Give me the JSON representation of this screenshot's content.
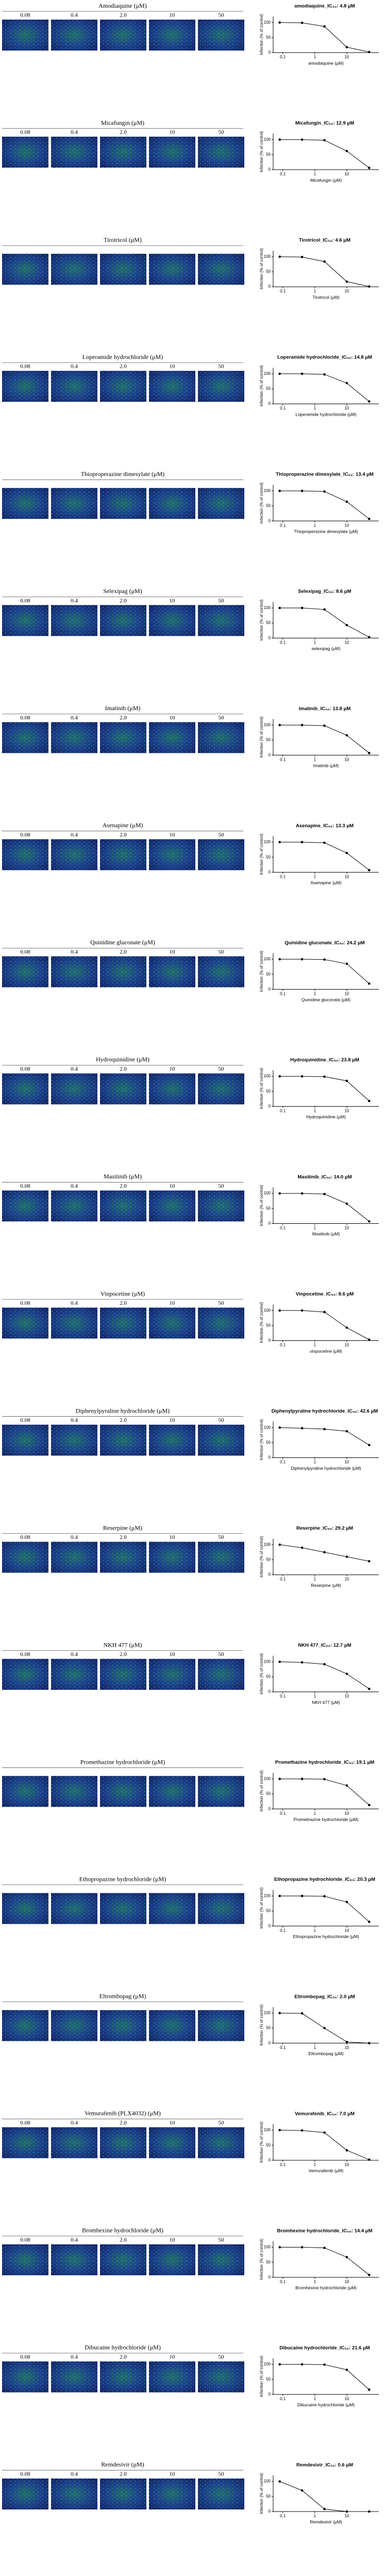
{
  "chart_data": [
    {
      "type": "line",
      "panel_title": "Amodiaquine (μM)",
      "image_labels": [
        "0.08",
        "0.4",
        "2.0",
        "10",
        "50"
      ],
      "title": "amodiaquine_IC₅₀: 4.8 μM",
      "xlabel": "amodiaquine (μM)",
      "ylabel": "Infection (% of control)",
      "x": [
        0.08,
        0.4,
        2,
        10,
        50
      ],
      "values": [
        100,
        99,
        87,
        18,
        2
      ],
      "color": "#000000",
      "log_x": true,
      "xlim": [
        0.05,
        100
      ],
      "ylim": [
        0,
        120
      ],
      "xticks": [
        0.1,
        1,
        10
      ],
      "yticks": [
        0,
        50,
        100
      ]
    },
    {
      "type": "line",
      "panel_title": "Micafungin (μM)",
      "image_labels": [
        "0.08",
        "0.4",
        "2.0",
        "10",
        "50"
      ],
      "title": "Micafungin_IC₅₀: 12.9 μM",
      "xlabel": "Micafungin (μM)",
      "ylabel": "Infection (% of control)",
      "x": [
        0.08,
        0.4,
        2,
        10,
        50
      ],
      "values": [
        100,
        100,
        98,
        62,
        6
      ],
      "color": "#000000",
      "log_x": true,
      "xlim": [
        0.05,
        100
      ],
      "ylim": [
        0,
        120
      ],
      "xticks": [
        0.1,
        1,
        10
      ],
      "yticks": [
        0,
        50,
        100
      ]
    },
    {
      "type": "line",
      "panel_title": "Tirotricol (μM)",
      "title": "Tirotricol_IC₅₀: 4.6 μM",
      "xlabel": "Tirotricol (μM)",
      "ylabel": "Infection (% of control)",
      "x": [
        0.08,
        0.4,
        2,
        10,
        50
      ],
      "values": [
        100,
        99,
        84,
        17,
        1
      ],
      "color": "#000000",
      "log_x": true,
      "xlim": [
        0.05,
        100
      ],
      "ylim": [
        0,
        120
      ],
      "xticks": [
        0.1,
        1,
        10
      ],
      "yticks": [
        0,
        50,
        100
      ]
    },
    {
      "type": "line",
      "panel_title": "Loperamide hydrochloride (μM)",
      "image_labels": [
        "0.08",
        "0.4",
        "2.0",
        "10",
        "50"
      ],
      "title": "Loperamide hydrochloride_IC₅₀: 14.8 μM",
      "xlabel": "Loperamide hydrochloride (μM)",
      "ylabel": "Infection (% of control)",
      "x": [
        0.08,
        0.4,
        2,
        10,
        50
      ],
      "values": [
        100,
        100,
        98,
        69,
        8
      ],
      "color": "#000000",
      "log_x": true,
      "xlim": [
        0.05,
        100
      ],
      "ylim": [
        0,
        120
      ],
      "xticks": [
        0.1,
        1,
        10
      ],
      "yticks": [
        0,
        50,
        100
      ]
    },
    {
      "type": "line",
      "panel_title": "Thioproperazine dimesylate (μM)",
      "title": "Thioproperazine dimesylate_IC₅₀: 13.4 μM",
      "xlabel": "Thioproperazine dimesylate (μM)",
      "ylabel": "Infection (% of control)",
      "x": [
        0.08,
        0.4,
        2,
        10,
        50
      ],
      "values": [
        100,
        100,
        98,
        64,
        7
      ],
      "color": "#000000",
      "log_x": true,
      "xlim": [
        0.05,
        100
      ],
      "ylim": [
        0,
        120
      ],
      "xticks": [
        0.1,
        1,
        10
      ],
      "yticks": [
        0,
        50,
        100
      ]
    },
    {
      "type": "line",
      "panel_title": "Selexipag (μM)",
      "image_labels": [
        "0.08",
        "0.4",
        "2.0",
        "10",
        "50"
      ],
      "title": "Selexipag_IC₅₀: 8.6 μM",
      "xlabel": "selexipag (μM)",
      "ylabel": "Infection (% of control)",
      "x": [
        0.08,
        0.4,
        2,
        10,
        50
      ],
      "values": [
        100,
        100,
        95,
        43,
        3
      ],
      "color": "#000000",
      "log_x": true,
      "xlim": [
        0.05,
        100
      ],
      "ylim": [
        0,
        120
      ],
      "xticks": [
        0.1,
        1,
        10
      ],
      "yticks": [
        0,
        50,
        100
      ]
    },
    {
      "type": "line",
      "panel_title": "Imatinib (μM)",
      "image_labels": [
        "0.08",
        "0.4",
        "2.0",
        "10",
        "50"
      ],
      "title": "Imatinib_IC₅₀: 13.8 μM",
      "xlabel": "Imatinib (μM)",
      "ylabel": "Infection (% of control)",
      "x": [
        0.08,
        0.4,
        2,
        10,
        50
      ],
      "values": [
        100,
        100,
        98,
        66,
        7
      ],
      "color": "#000000",
      "log_x": true,
      "xlim": [
        0.05,
        100
      ],
      "ylim": [
        0,
        120
      ],
      "xticks": [
        0.1,
        1,
        10
      ],
      "yticks": [
        0,
        50,
        100
      ]
    },
    {
      "type": "line",
      "panel_title": "Asenapine (μM)",
      "image_labels": [
        "0.08",
        "0.4",
        "2.0",
        "10",
        "50"
      ],
      "title": "Asenapine_IC₅₀: 13.3 μM",
      "xlabel": "Asenapine (μM)",
      "ylabel": "Infection (% of control)",
      "x": [
        0.08,
        0.4,
        2,
        10,
        50
      ],
      "values": [
        100,
        100,
        98,
        64,
        7
      ],
      "color": "#000000",
      "log_x": true,
      "xlim": [
        0.05,
        100
      ],
      "ylim": [
        0,
        120
      ],
      "xticks": [
        0.1,
        1,
        10
      ],
      "yticks": [
        0,
        50,
        100
      ]
    },
    {
      "type": "line",
      "panel_title": "Quinidine gluconate (μM)",
      "image_labels": [
        "0.08",
        "0.4",
        "2.0",
        "10",
        "50"
      ],
      "title": "Quinidine gluconate_IC₅₀: 24.2 μM",
      "xlabel": "Quinidine gluconate (μM)",
      "ylabel": "Infection (% of control)",
      "x": [
        0.08,
        0.4,
        2,
        10,
        50
      ],
      "values": [
        100,
        100,
        99,
        85,
        19
      ],
      "color": "#000000",
      "log_x": true,
      "xlim": [
        0.05,
        100
      ],
      "ylim": [
        0,
        120
      ],
      "xticks": [
        0.1,
        1,
        10
      ],
      "yticks": [
        0,
        50,
        100
      ]
    },
    {
      "type": "line",
      "panel_title": "Hydroquinidine (μM)",
      "image_labels": [
        "0.08",
        "0.4",
        "2.0",
        "10",
        "50"
      ],
      "title": "Hydroquinidine_IC₅₀: 23.8 μM",
      "xlabel": "Hydroquinidine (μM)",
      "ylabel": "Infection (% of control)",
      "x": [
        0.08,
        0.4,
        2,
        10,
        50
      ],
      "values": [
        100,
        100,
        99,
        85,
        18
      ],
      "color": "#000000",
      "log_x": true,
      "xlim": [
        0.05,
        100
      ],
      "ylim": [
        0,
        120
      ],
      "xticks": [
        0.1,
        1,
        10
      ],
      "yticks": [
        0,
        50,
        100
      ]
    },
    {
      "type": "line",
      "panel_title": "Masitinib (μM)",
      "image_labels": [
        "0.08",
        "0.4",
        "2.0",
        "10",
        "50"
      ],
      "title": "Masitinib_IC₅₀: 14.0 μM",
      "xlabel": "Masitinib (μM)",
      "ylabel": "Infection (% of control)",
      "x": [
        0.08,
        0.4,
        2,
        10,
        50
      ],
      "values": [
        100,
        100,
        98,
        66,
        7
      ],
      "color": "#000000",
      "log_x": true,
      "xlim": [
        0.05,
        100
      ],
      "ylim": [
        0,
        120
      ],
      "xticks": [
        0.1,
        1,
        10
      ],
      "yticks": [
        0,
        50,
        100
      ]
    },
    {
      "type": "line",
      "panel_title": "Vinpocetine (μM)",
      "image_labels": [
        "0.08",
        "0.4",
        "2.0",
        "10",
        "50"
      ],
      "title": "Vinpocetine_IC₅₀: 8.6 μM",
      "xlabel": "vinpocetine (μM)",
      "ylabel": "Infection (% of control)",
      "x": [
        0.08,
        0.4,
        2,
        10,
        50
      ],
      "values": [
        100,
        100,
        95,
        43,
        3
      ],
      "color": "#000000",
      "log_x": true,
      "xlim": [
        0.05,
        100
      ],
      "ylim": [
        0,
        120
      ],
      "xticks": [
        0.1,
        1,
        10
      ],
      "yticks": [
        0,
        50,
        100
      ]
    },
    {
      "type": "line",
      "panel_title": "Diphenylpyraline hydrochloride (μM)",
      "image_labels": [
        "0.08",
        "0.4",
        "2.0",
        "10",
        "50"
      ],
      "title": "Diphenylpyraline hydrochloride_IC₅₀: 42.6 μM",
      "xlabel": "Diphenylpyraline hydrochloride (μM)",
      "ylabel": "Infection (% of control)",
      "x": [
        0.08,
        0.4,
        2,
        10,
        50
      ],
      "values": [
        100,
        98,
        95,
        88,
        42
      ],
      "color": "#000000",
      "log_x": true,
      "xlim": [
        0.05,
        100
      ],
      "ylim": [
        0,
        120
      ],
      "xticks": [
        0.1,
        1,
        10
      ],
      "yticks": [
        0,
        50,
        100
      ]
    },
    {
      "type": "line",
      "panel_title": "Reserpine (μM)",
      "image_labels": [
        "0.08",
        "0.4",
        "2.0",
        "10",
        "50"
      ],
      "title": "Reserpine_IC₅₀: 29.2 μM",
      "xlabel": "Reserpine (μM)",
      "ylabel": "Infection (% of control)",
      "x": [
        0.08,
        0.4,
        2,
        10,
        50
      ],
      "values": [
        100,
        90,
        75,
        60,
        45
      ],
      "color": "#000000",
      "log_x": true,
      "xlim": [
        0.05,
        100
      ],
      "ylim": [
        0,
        120
      ],
      "xticks": [
        0.1,
        1,
        10
      ],
      "yticks": [
        0,
        50,
        100
      ]
    },
    {
      "type": "line",
      "panel_title": "NKH 477 (μM)",
      "image_labels": [
        "0.08",
        "0.4",
        "2.0",
        "10",
        "50"
      ],
      "title": "NKH 477_IC₅₀: 12.7 μM",
      "xlabel": "NKH 477 (μM)",
      "ylabel": "Infection (% of control)",
      "x": [
        0.08,
        0.4,
        2,
        10,
        50
      ],
      "values": [
        100,
        98,
        92,
        60,
        10
      ],
      "color": "#000000",
      "log_x": true,
      "xlim": [
        0.05,
        100
      ],
      "ylim": [
        0,
        120
      ],
      "xticks": [
        0.1,
        1,
        10
      ],
      "yticks": [
        0,
        50,
        100
      ]
    },
    {
      "type": "line",
      "panel_title": "Promethazine hydrochloride (μM)",
      "title": "Promethazine hydrochloride_IC₅₀: 19.1 μM",
      "xlabel": "Promethazine hydrochloride (μM)",
      "ylabel": "Infection (% of control)",
      "x": [
        0.08,
        0.4,
        2,
        10,
        50
      ],
      "values": [
        100,
        100,
        99,
        78,
        13
      ],
      "color": "#000000",
      "log_x": true,
      "xlim": [
        0.05,
        100
      ],
      "ylim": [
        0,
        120
      ],
      "xticks": [
        0.1,
        1,
        10
      ],
      "yticks": [
        0,
        50,
        100
      ]
    },
    {
      "type": "line",
      "panel_title": "Ethopropazine hydrochloride (μM)",
      "title": "Ethopropazine hydrochloride_IC₅₀: 20.3 μM",
      "xlabel": "Ethopropazine hydrochloride (μM)",
      "ylabel": "Infection (% of control)",
      "x": [
        0.08,
        0.4,
        2,
        10,
        50
      ],
      "values": [
        100,
        100,
        99,
        80,
        14
      ],
      "color": "#000000",
      "log_x": true,
      "xlim": [
        0.05,
        100
      ],
      "ylim": [
        0,
        120
      ],
      "xticks": [
        0.1,
        1,
        10
      ],
      "yticks": [
        0,
        50,
        100
      ]
    },
    {
      "type": "line",
      "panel_title": "Eltrombopag (μM)",
      "title": "Eltrombopag_IC₅₀: 2.0 μM",
      "xlabel": "Eltrombopag (μM)",
      "ylabel": "Infection (% of control)",
      "x": [
        0.08,
        0.4,
        2,
        10,
        50
      ],
      "values": [
        100,
        99,
        50,
        4,
        0
      ],
      "color": "#000000",
      "log_x": true,
      "xlim": [
        0.05,
        100
      ],
      "ylim": [
        0,
        120
      ],
      "xticks": [
        0.1,
        1,
        10
      ],
      "yticks": [
        0,
        50,
        100
      ]
    },
    {
      "type": "line",
      "panel_title": "Vemurafenib (PLX4032) (μM)",
      "image_labels": [
        "0.08",
        "0.4",
        "2.0",
        "10",
        "50"
      ],
      "title": "Vemurafenib_IC₅₀: 7.0 μM",
      "xlabel": "Vemurafenib (μM)",
      "ylabel": "Infection (% of control)",
      "x": [
        0.08,
        0.4,
        2,
        10,
        50
      ],
      "values": [
        100,
        99,
        92,
        33,
        2
      ],
      "color": "#000000",
      "log_x": true,
      "xlim": [
        0.05,
        100
      ],
      "ylim": [
        0,
        120
      ],
      "xticks": [
        0.1,
        1,
        10
      ],
      "yticks": [
        0,
        50,
        100
      ]
    },
    {
      "type": "line",
      "panel_title": "Bromhexine hydrochloride (μM)",
      "image_labels": [
        "0.08",
        "0.4",
        "2.0",
        "10",
        "50"
      ],
      "title": "Bromhexine hydrochloride_IC₅₀: 14.4 μM",
      "xlabel": "Bromhexine hydrochloride (μM)",
      "ylabel": "Infection (% of control)",
      "x": [
        0.08,
        0.4,
        2,
        10,
        50
      ],
      "values": [
        100,
        100,
        98,
        67,
        8
      ],
      "color": "#000000",
      "log_x": true,
      "xlim": [
        0.05,
        100
      ],
      "ylim": [
        0,
        120
      ],
      "xticks": [
        0.1,
        1,
        10
      ],
      "yticks": [
        0,
        50,
        100
      ]
    },
    {
      "type": "line",
      "panel_title": "Dibucaine hydrochloride (μM)",
      "image_labels": [
        "0.08",
        "0.4",
        "2.0",
        "10",
        "50"
      ],
      "title": "Dibucaine hydrochloride_IC₅₀: 21.6 μM",
      "xlabel": "Dibucaine hydrochloride (μM)",
      "ylabel": "Infection (% of control)",
      "x": [
        0.08,
        0.4,
        2,
        10,
        50
      ],
      "values": [
        100,
        100,
        99,
        82,
        16
      ],
      "color": "#000000",
      "log_x": true,
      "xlim": [
        0.05,
        100
      ],
      "ylim": [
        0,
        120
      ],
      "xticks": [
        0.1,
        1,
        10
      ],
      "yticks": [
        0,
        50,
        100
      ]
    },
    {
      "type": "line",
      "panel_title": "Remdesivir (μM)",
      "image_labels": [
        "0.08",
        "0.4",
        "2.0",
        "10",
        "50"
      ],
      "title": "Remdesivir_IC₅₀: 0.6 μM",
      "xlabel": "Remdesivir (μM)",
      "ylabel": "Infection (% of control)",
      "x": [
        0.08,
        0.4,
        2,
        10,
        50
      ],
      "values": [
        100,
        70,
        8,
        0,
        0
      ],
      "color": "#000000",
      "log_x": true,
      "xlim": [
        0.05,
        100
      ],
      "ylim": [
        0,
        120
      ],
      "xticks": [
        0.1,
        1,
        10
      ],
      "yticks": [
        0,
        50,
        100
      ]
    }
  ]
}
